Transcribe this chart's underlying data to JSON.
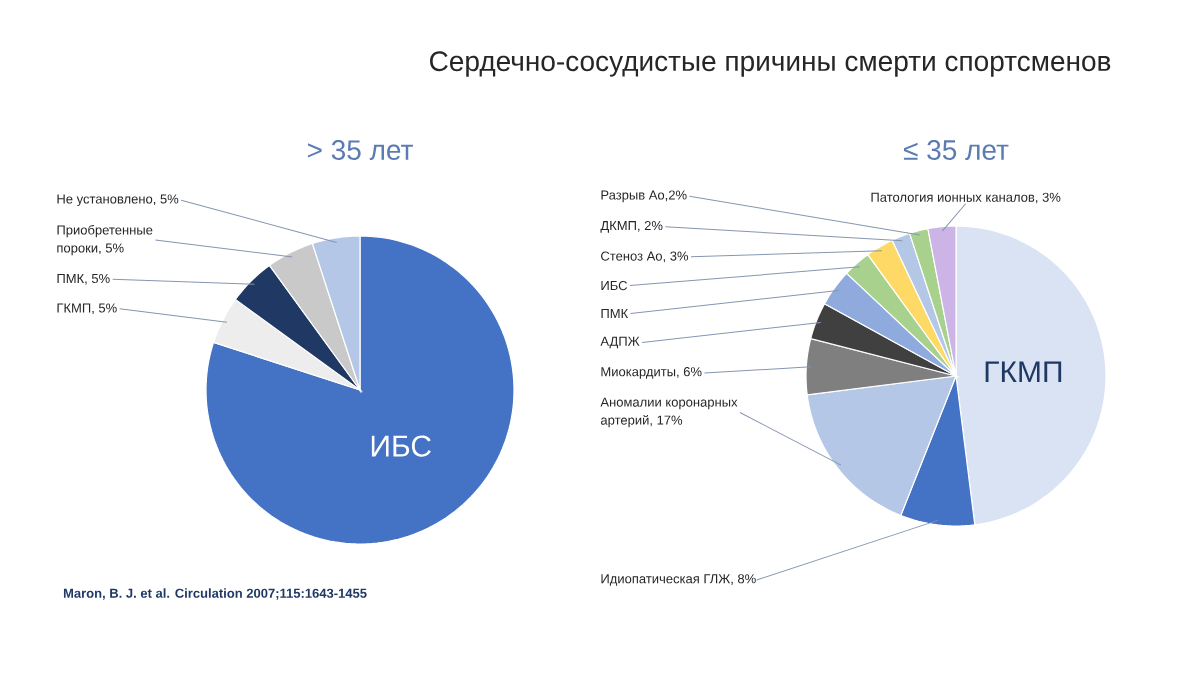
{
  "chart_data": [
    {
      "type": "other",
      "title": "Сердечно-сосудистые причины смерти спортсменов",
      "annotations": [
        "Maron, B. J. et al. Circulation 2007;115:1643-1455"
      ]
    },
    {
      "type": "pie",
      "title": "> 35 лет",
      "categories": [
        "ИБС",
        "ГКМП",
        "ПМК",
        "Приобретенные пороки",
        "Не установлено"
      ],
      "values": [
        80,
        5,
        5,
        5,
        5
      ],
      "value_labels": [
        null,
        ", 5%",
        ", 5%",
        ", 5%",
        ", 5%"
      ],
      "colors": [
        "#4472c4",
        "#ededed",
        "#1f3864",
        "#c9c9c9",
        "#b4c7e7"
      ]
    },
    {
      "type": "pie",
      "title": "≤ 35 лет",
      "categories": [
        "ГКМП",
        "Идиопатическая ГЛЖ",
        "Аномалии коронарных артерий",
        "Миокардиты",
        "АДПЖ",
        "ПМК",
        "ИБС",
        "Стеноз Ао",
        "ДКМП",
        "Разрыв Ао",
        "Патология ионных каналов"
      ],
      "values": [
        48,
        8,
        17,
        6,
        4,
        4,
        3,
        3,
        2,
        2,
        3
      ],
      "value_labels": [
        null,
        ", 8%",
        ", 17%",
        ", 6%",
        null,
        null,
        null,
        ", 3%",
        ", 2%",
        ",2%",
        ", 3%"
      ],
      "colors": [
        "#dae3f3",
        "#4472c4",
        "#b4c7e7",
        "#7f7f7f",
        "#404040",
        "#8faadc",
        "#a9d18e",
        "#ffd966",
        "#b4c7e7",
        "#a9d18e",
        "#cdb4e7"
      ]
    }
  ]
}
